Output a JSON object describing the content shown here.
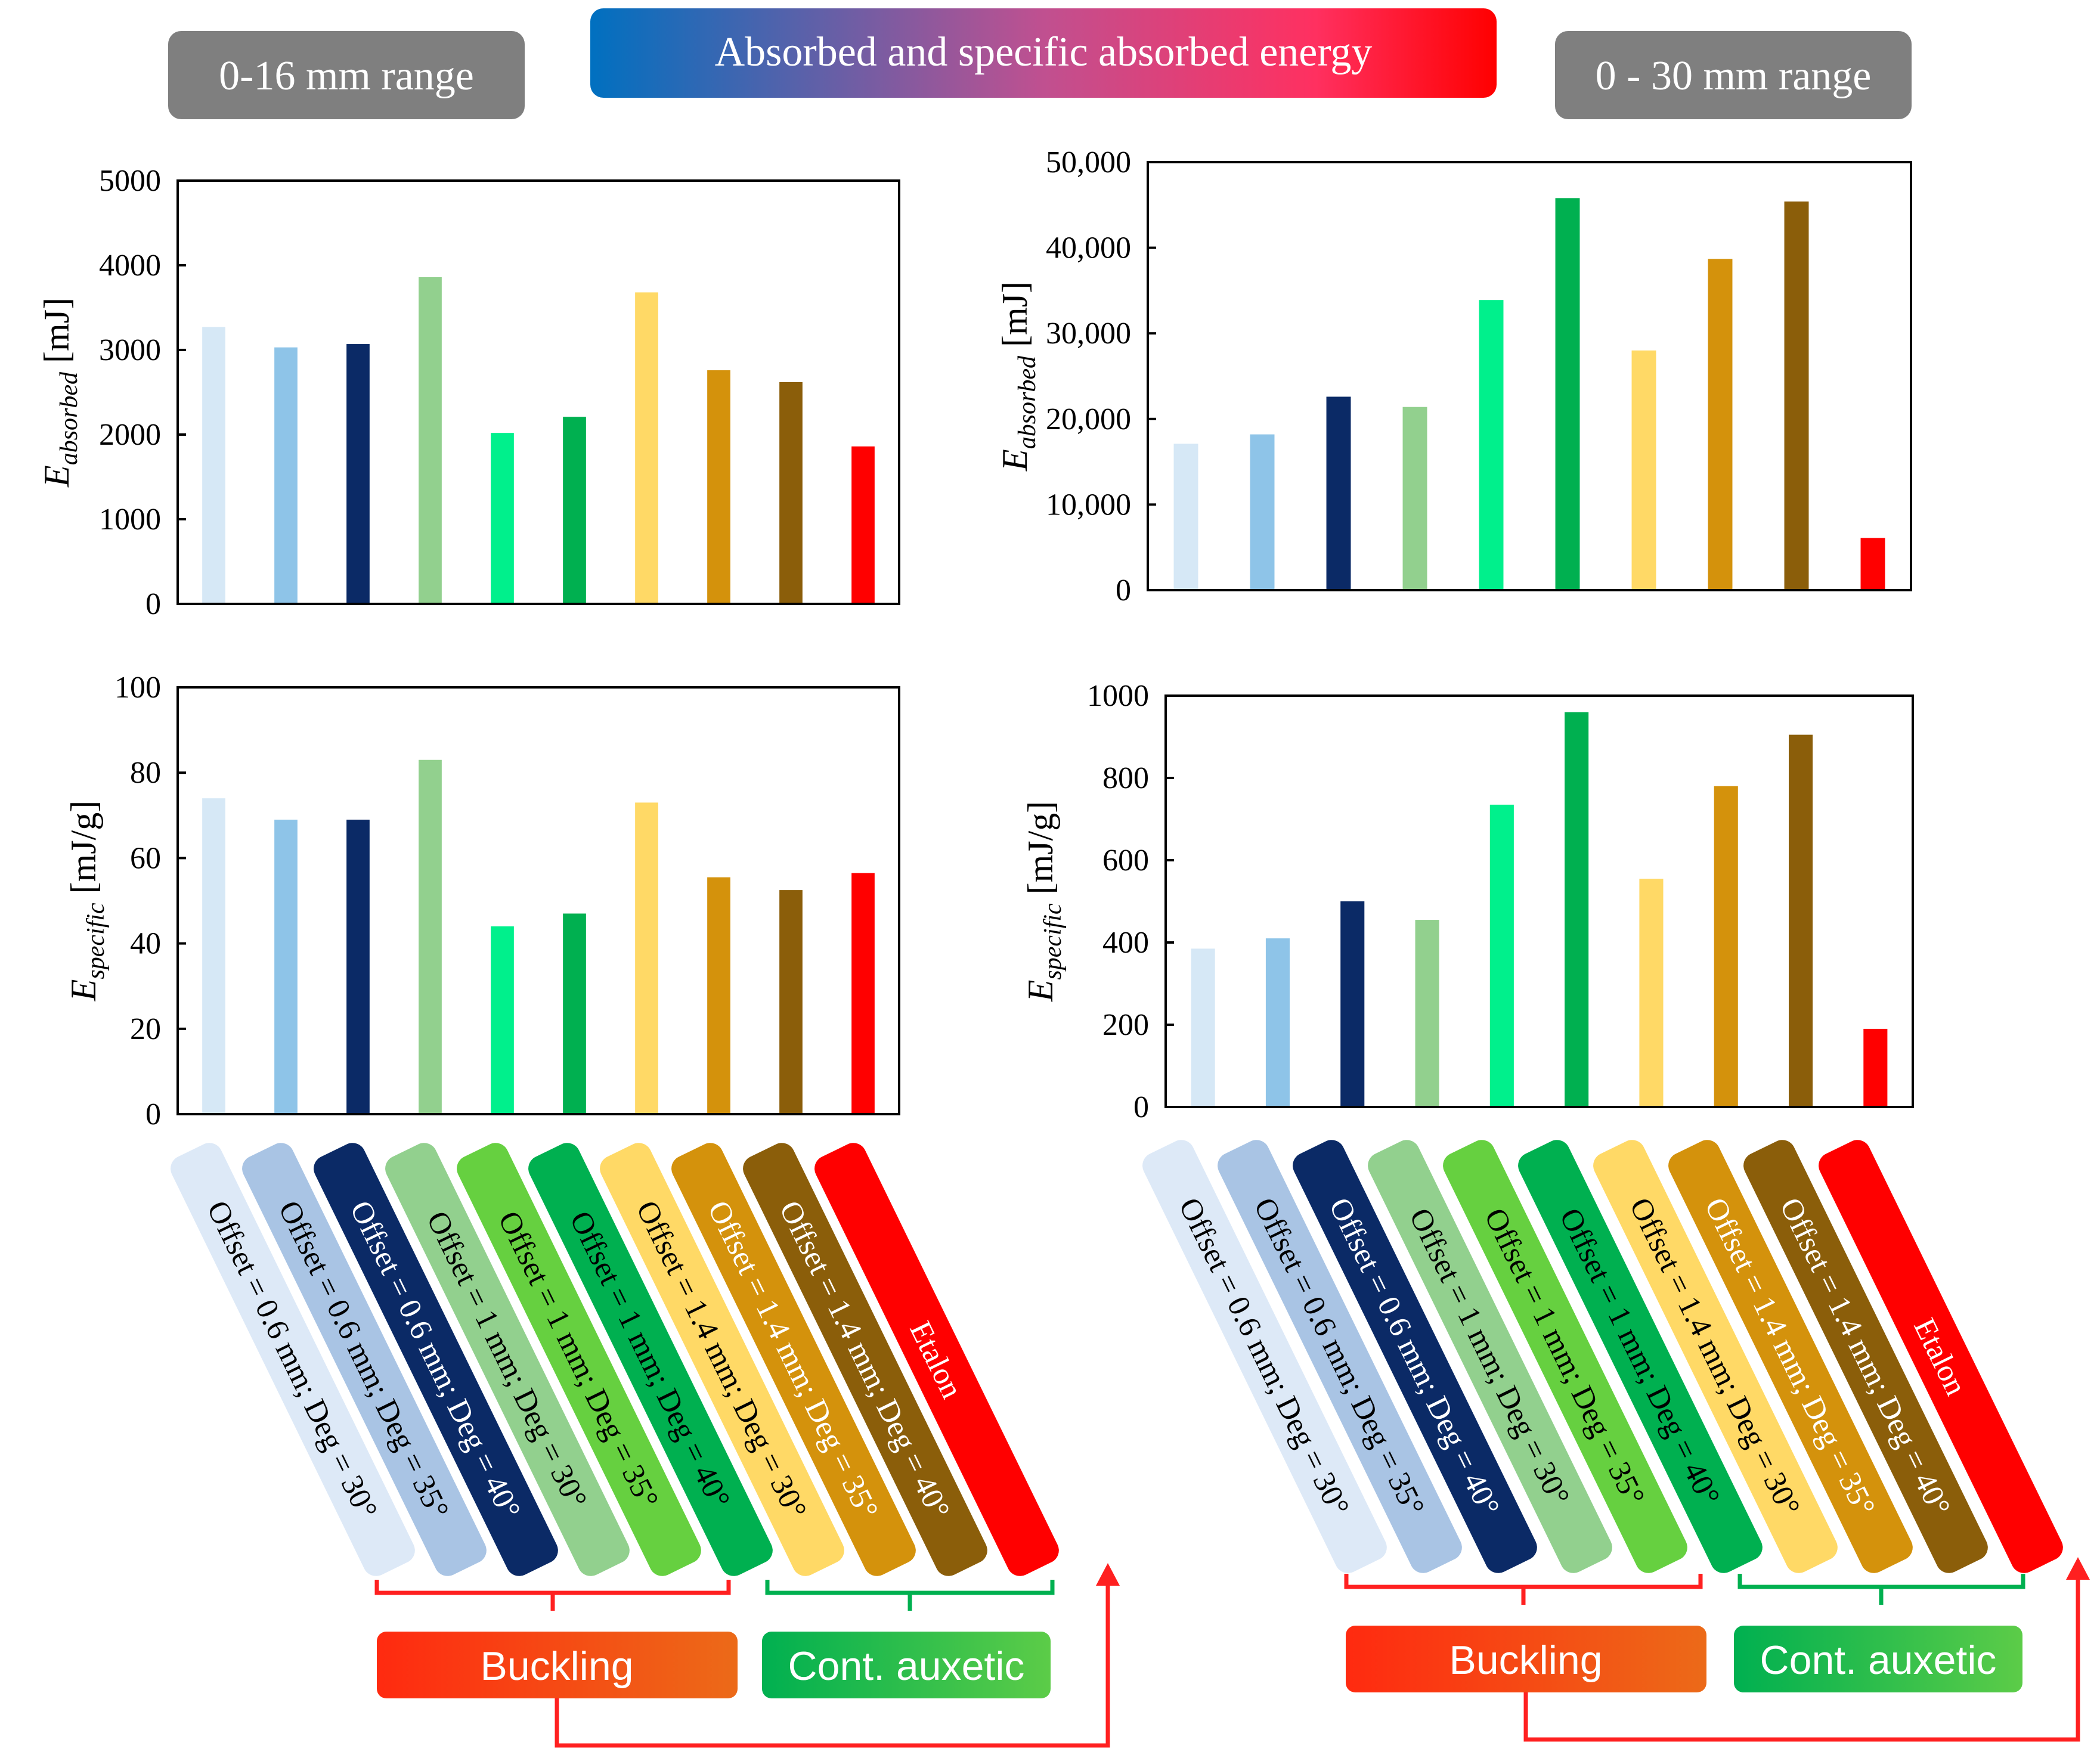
{
  "header": {
    "title": "Absorbed and specific absorbed energy",
    "left_range": "0-16 mm range",
    "right_range": "0 - 30 mm range"
  },
  "categories": [
    "Offset = 0.6 mm; Deg = 30°",
    "Offset = 0.6 mm; Deg = 35°",
    "Offset = 0.6 mm; Deg = 40°",
    "Offset = 1 mm; Deg = 30°",
    "Offset = 1 mm; Deg = 35°",
    "Offset = 1 mm; Deg = 40°",
    "Offset = 1.4 mm; Deg = 30°",
    "Offset = 1.4 mm; Deg = 35°",
    "Offset = 1.4 mm; Deg = 40°",
    "Etalon"
  ],
  "colors": {
    "bars": [
      "#d6e8f6",
      "#8ec4e8",
      "#0b2a66",
      "#92d08e",
      "#00f08c",
      "#00b050",
      "#ffd966",
      "#d4920c",
      "#8b5e0a",
      "#ff0000"
    ],
    "tags": [
      "#dde9f7",
      "#a9c4e4",
      "#0b2a66",
      "#92d08e",
      "#66d040",
      "#00b050",
      "#ffd966",
      "#d4920c",
      "#8b5e0a",
      "#ff0000"
    ],
    "tag_text": [
      "#000000",
      "#000000",
      "#ffffff",
      "#000000",
      "#000000",
      "#000000",
      "#000000",
      "#ffffff",
      "#ffffff",
      "#ffffff"
    ],
    "header_gray": "#7f7f7f",
    "bracket_red": "#ff2020",
    "bracket_green": "#00b050"
  },
  "groups": {
    "buckling": "Buckling",
    "auxetic": "Cont. auxetic"
  },
  "chart_data": [
    {
      "type": "bar",
      "id": "absorbed_0_16",
      "range": "0-16 mm range",
      "ylabel_main": "E",
      "ylabel_sub": "absorbed",
      "ylabel_unit": "[mJ]",
      "ylim": [
        0,
        5000
      ],
      "yticks": [
        0,
        1000,
        2000,
        3000,
        4000,
        5000
      ],
      "yticklabels": [
        "0",
        "1000",
        "2000",
        "3000",
        "4000",
        "5000"
      ],
      "values": [
        3270,
        3030,
        3070,
        3860,
        2020,
        2210,
        3680,
        2760,
        2620,
        1860
      ]
    },
    {
      "type": "bar",
      "id": "absorbed_0_30",
      "range": "0 - 30 mm range",
      "ylabel_main": "E",
      "ylabel_sub": "absorbed",
      "ylabel_unit": "[mJ]",
      "ylim": [
        0,
        50000
      ],
      "yticks": [
        0,
        10000,
        20000,
        30000,
        40000,
        50000
      ],
      "yticklabels": [
        "0",
        "10,000",
        "20,000",
        "30,000",
        "40,000",
        "50,000"
      ],
      "values": [
        17100,
        18200,
        22600,
        21400,
        33900,
        45800,
        28000,
        38700,
        45400,
        6100
      ]
    },
    {
      "type": "bar",
      "id": "specific_0_16",
      "range": "0-16 mm range",
      "ylabel_main": "E",
      "ylabel_sub": "specific",
      "ylabel_unit": "[mJ/g]",
      "ylim": [
        0,
        100
      ],
      "yticks": [
        0,
        20,
        40,
        60,
        80,
        100
      ],
      "yticklabels": [
        "0",
        "20",
        "40",
        "60",
        "80",
        "100"
      ],
      "values": [
        74,
        69,
        69,
        83,
        44,
        47,
        73,
        55.5,
        52.5,
        56.5
      ]
    },
    {
      "type": "bar",
      "id": "specific_0_30",
      "range": "0 - 30 mm range",
      "ylabel_main": "E",
      "ylabel_sub": "specific",
      "ylabel_unit": "[mJ/g]",
      "ylim": [
        0,
        1000
      ],
      "yticks": [
        0,
        200,
        400,
        600,
        800,
        1000
      ],
      "yticklabels": [
        "0",
        "200",
        "400",
        "600",
        "800",
        "1000"
      ],
      "values": [
        385,
        410,
        500,
        455,
        735,
        960,
        555,
        780,
        905,
        190
      ]
    }
  ]
}
